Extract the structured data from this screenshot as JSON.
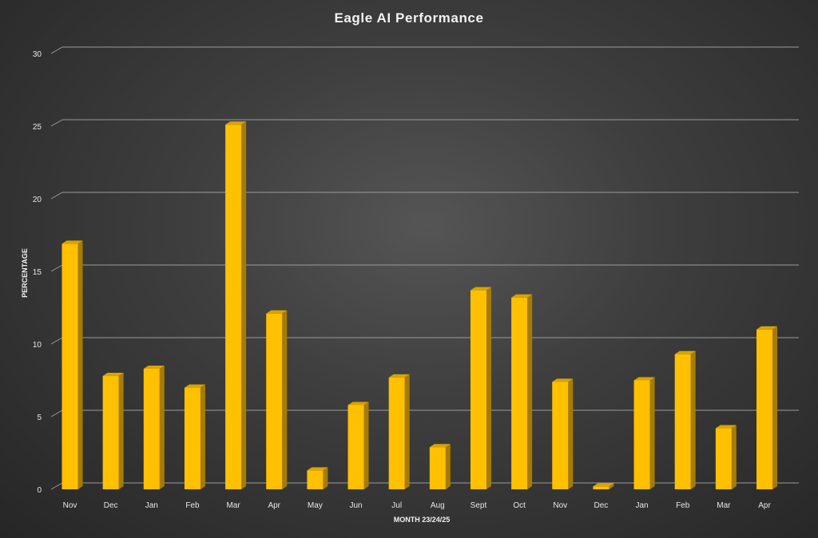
{
  "chart_data": {
    "type": "bar",
    "title": "Eagle AI Performance",
    "xlabel": "MONTH 23/24/25",
    "ylabel": "PERCENTAGE",
    "categories": [
      "Nov",
      "Dec",
      "Jan",
      "Feb",
      "Mar",
      "Apr",
      "May",
      "Jun",
      "Jul",
      "Aug",
      "Sept",
      "Oct",
      "Nov",
      "Dec",
      "Jan",
      "Feb",
      "Mar",
      "Apr"
    ],
    "values": [
      16.9,
      7.8,
      8.3,
      7.0,
      25.1,
      12.1,
      1.3,
      5.8,
      7.7,
      2.9,
      13.7,
      13.2,
      7.4,
      0.2,
      7.5,
      9.3,
      4.2,
      11.0
    ],
    "ylim": [
      0,
      30
    ],
    "yticks": [
      0,
      5,
      10,
      15,
      20,
      25,
      30
    ],
    "grid": true,
    "legend": "none",
    "colors": {
      "bar_front": "#ffc000",
      "bar_side": "#a67c00",
      "bar_top": "#d9a300",
      "grid": "#9a9a9a",
      "text": "#e8e8e8"
    }
  }
}
